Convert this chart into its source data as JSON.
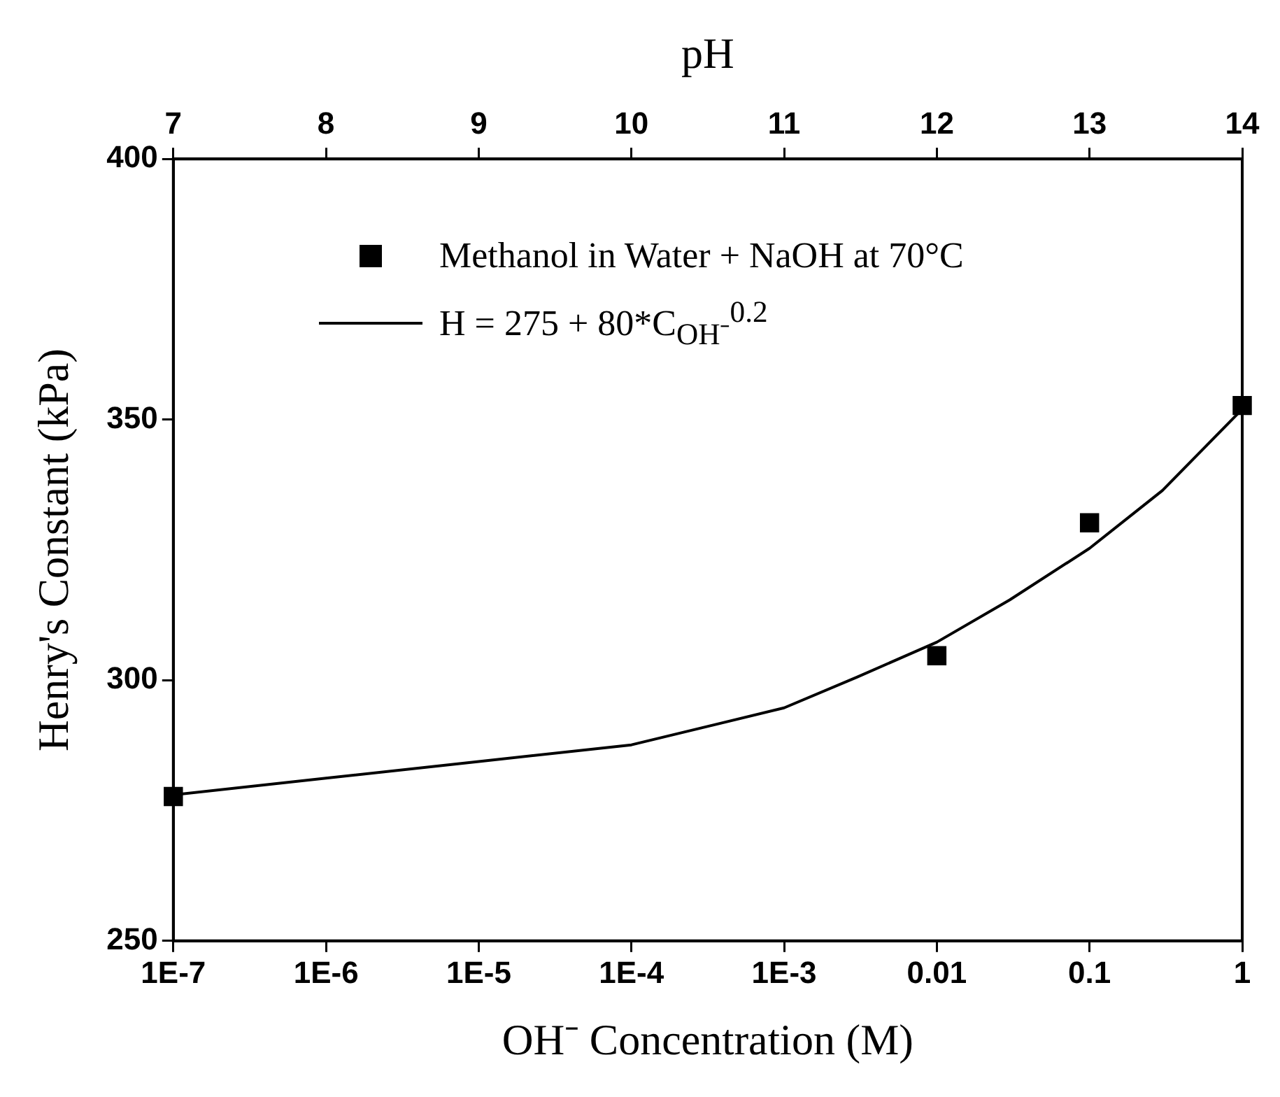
{
  "chart_data": {
    "type": "scatter",
    "xlabel": "OH⁻ Concentration (M)",
    "ylabel": "Henry's Constant (kPa)",
    "x2label": "pH",
    "log": "x",
    "xlim": [
      1e-07,
      1
    ],
    "xticks": [
      {
        "value": 1e-07,
        "label": "1E-7"
      },
      {
        "value": 1e-06,
        "label": "1E-6"
      },
      {
        "value": 1e-05,
        "label": "1E-5"
      },
      {
        "value": 0.0001,
        "label": "1E-4"
      },
      {
        "value": 0.001,
        "label": "1E-3"
      },
      0.01,
      0.1,
      1
    ],
    "x2lim": [
      7,
      14
    ],
    "x2ticks": [
      7,
      8,
      9,
      10,
      11,
      12,
      13,
      14
    ],
    "ylim": [
      250,
      400
    ],
    "yticks": [
      250,
      300,
      350,
      400
    ],
    "grid": false,
    "legend": "top left",
    "series": [
      {
        "name": "Methanol in Water + NaOH at 70°C",
        "marker": "square",
        "color": "#000000",
        "x": [
          1e-07,
          0.01,
          0.1,
          1
        ],
        "values": [
          277.7,
          304.7,
          330.2,
          352.7
        ]
      },
      {
        "name": "H = 275 + 80*C$_{OH⁻}$$^{0.2}$",
        "type": "line",
        "marker": "none",
        "line_style": "solid",
        "color": "#000000",
        "x": [
          1e-07,
          1e-06,
          1e-05,
          0.0001,
          0.001,
          0.003,
          0.01,
          0.03,
          0.1,
          0.3,
          1
        ],
        "values": [
          278,
          281.2,
          284.4,
          287.6,
          294.7,
          300.6,
          307.3,
          315.4,
          325.3,
          336.4,
          352
        ]
      }
    ]
  }
}
